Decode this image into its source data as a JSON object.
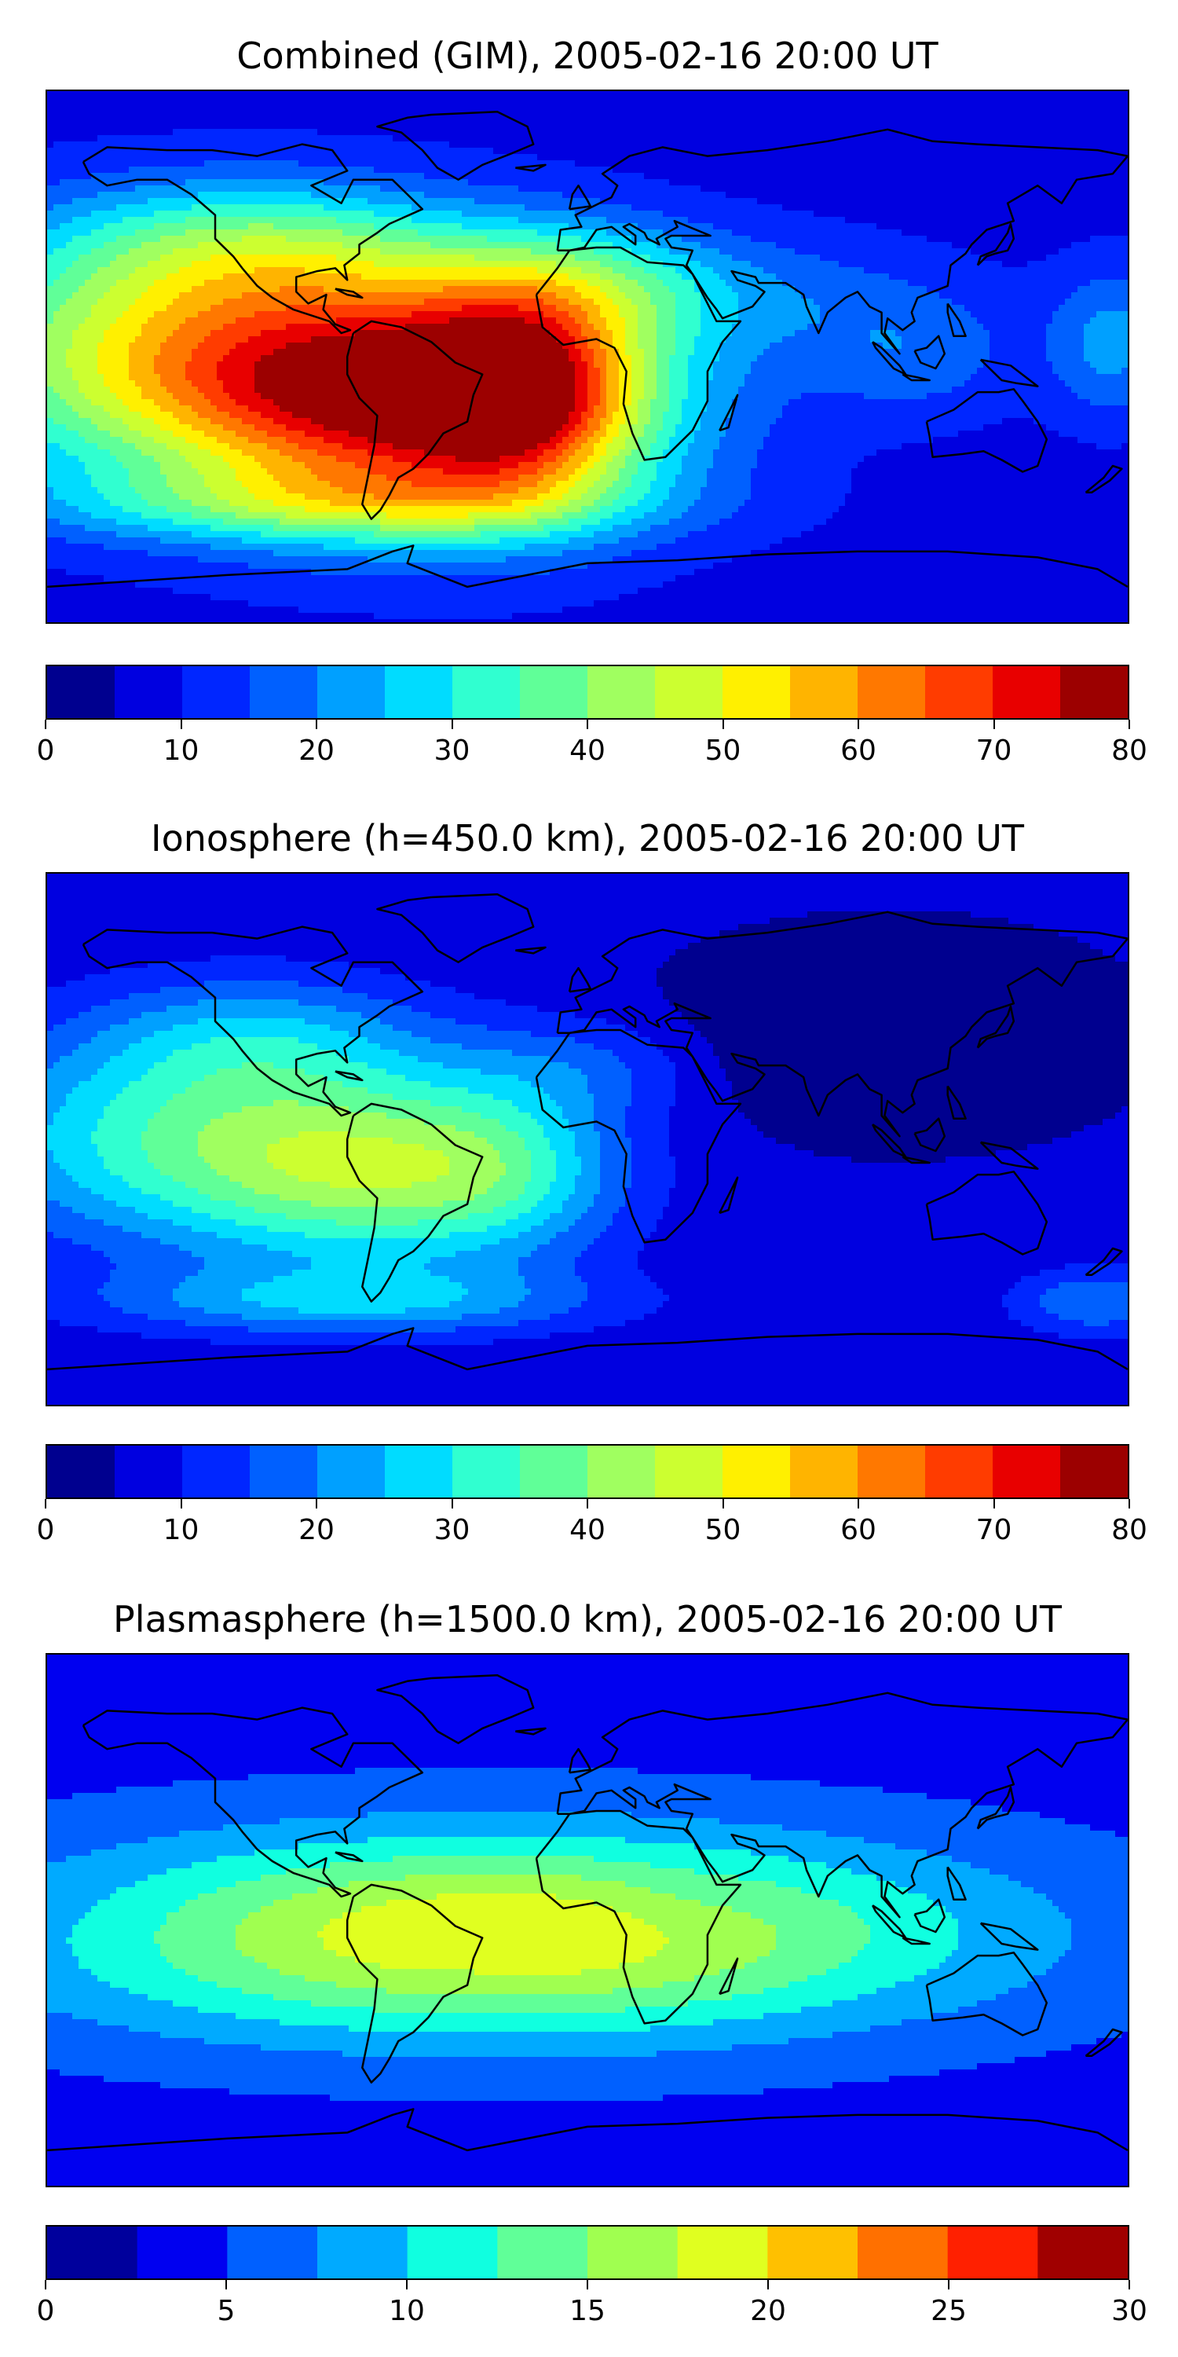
{
  "chart_data": [
    {
      "type": "heatmap",
      "title": "Combined (GIM), 2005-02-16 20:00 UT",
      "colorbar": {
        "levels": [
          0,
          5,
          10,
          15,
          20,
          25,
          30,
          35,
          40,
          45,
          50,
          55,
          60,
          65,
          70,
          75,
          80
        ],
        "ticks": [
          0,
          10,
          20,
          30,
          40,
          50,
          60,
          70,
          80
        ],
        "colors": [
          "#00008f",
          "#0000e0",
          "#0026ff",
          "#0060ff",
          "#00a0ff",
          "#00dcff",
          "#30ffd0",
          "#60ff98",
          "#a0ff60",
          "#ccff30",
          "#fff000",
          "#ffb400",
          "#ff7800",
          "#ff3c00",
          "#e80000",
          "#9c0000"
        ]
      },
      "background_value": 8,
      "features": [
        {
          "lon": -55,
          "lat": -14,
          "value": 70,
          "sx": 55,
          "sy": 28
        },
        {
          "lon": -140,
          "lat": 0,
          "value": 44,
          "sx": 60,
          "sy": 28
        },
        {
          "lon": -20,
          "lat": -12,
          "value": 38,
          "sx": 25,
          "sy": 25
        },
        {
          "lon": -110,
          "lat": 38,
          "value": 28,
          "sx": 50,
          "sy": 16
        },
        {
          "lon": 0,
          "lat": 25,
          "value": 24,
          "sx": 35,
          "sy": 15
        },
        {
          "lon": -85,
          "lat": -50,
          "value": 26,
          "sx": 70,
          "sy": 9
        },
        {
          "lon": 70,
          "lat": 20,
          "value": 15,
          "sx": 40,
          "sy": 15
        },
        {
          "lon": 175,
          "lat": 5,
          "value": 22,
          "sx": 15,
          "sy": 18
        },
        {
          "lon": 110,
          "lat": 0,
          "value": 17,
          "sx": 25,
          "sy": 15
        }
      ]
    },
    {
      "type": "heatmap",
      "title": "Ionosphere  (h=450.0 km), 2005-02-16 20:00 UT",
      "colorbar": {
        "levels": [
          0,
          5,
          10,
          15,
          20,
          25,
          30,
          35,
          40,
          45,
          50,
          55,
          60,
          65,
          70,
          75,
          80
        ],
        "ticks": [
          0,
          10,
          20,
          30,
          40,
          50,
          60,
          70,
          80
        ],
        "colors": [
          "#00008f",
          "#0000e0",
          "#0026ff",
          "#0060ff",
          "#00a0ff",
          "#00dcff",
          "#30ffd0",
          "#60ff98",
          "#a0ff60",
          "#ccff30",
          "#fff000",
          "#ffb400",
          "#ff7800",
          "#ff3c00",
          "#e80000",
          "#9c0000"
        ]
      },
      "background_value": 6,
      "features": [
        {
          "lon": -70,
          "lat": -10,
          "value": 38,
          "sx": 45,
          "sy": 24
        },
        {
          "lon": -145,
          "lat": 0,
          "value": 28,
          "sx": 50,
          "sy": 25
        },
        {
          "lon": -110,
          "lat": 35,
          "value": 20,
          "sx": 40,
          "sy": 15
        },
        {
          "lon": -25,
          "lat": -10,
          "value": 18,
          "sx": 25,
          "sy": 20
        },
        {
          "lon": -80,
          "lat": -55,
          "value": 22,
          "sx": 60,
          "sy": 8
        },
        {
          "lon": 170,
          "lat": -55,
          "value": 20,
          "sx": 20,
          "sy": 8
        },
        {
          "lon": 0,
          "lat": 25,
          "value": 14,
          "sx": 30,
          "sy": 12
        },
        {
          "lon": 100,
          "lat": 35,
          "value": -4,
          "sx": 45,
          "sy": 20
        }
      ]
    },
    {
      "type": "heatmap",
      "title": "Plasmasphere (h=1500.0 km), 2005-02-16 20:00 UT",
      "colorbar": {
        "levels": [
          0,
          2.5,
          5,
          7.5,
          10,
          12.5,
          15,
          17.5,
          20,
          22.5,
          25,
          27.5,
          30
        ],
        "ticks": [
          0,
          5,
          10,
          15,
          20,
          25,
          30
        ],
        "colors": [
          "#00009c",
          "#0000f0",
          "#0060ff",
          "#00aaff",
          "#10ffe0",
          "#60ff98",
          "#a0ff50",
          "#e0ff20",
          "#ffc000",
          "#ff7000",
          "#ff2000",
          "#a00000"
        ]
      },
      "background_value": 4,
      "features": [
        {
          "lon": -30,
          "lat": -5,
          "value": 20,
          "sx": 110,
          "sy": 24
        },
        {
          "lon": -40,
          "lat": -12,
          "value": 4,
          "sx": 30,
          "sy": 15
        },
        {
          "lon": -45,
          "lat": -12,
          "value": 3,
          "sx": 8,
          "sy": 6
        },
        {
          "lon": 30,
          "lat": 5,
          "value": 3,
          "sx": 20,
          "sy": 10
        },
        {
          "lon": -160,
          "lat": 0,
          "value": 3,
          "sx": 50,
          "sy": 15
        }
      ]
    }
  ]
}
